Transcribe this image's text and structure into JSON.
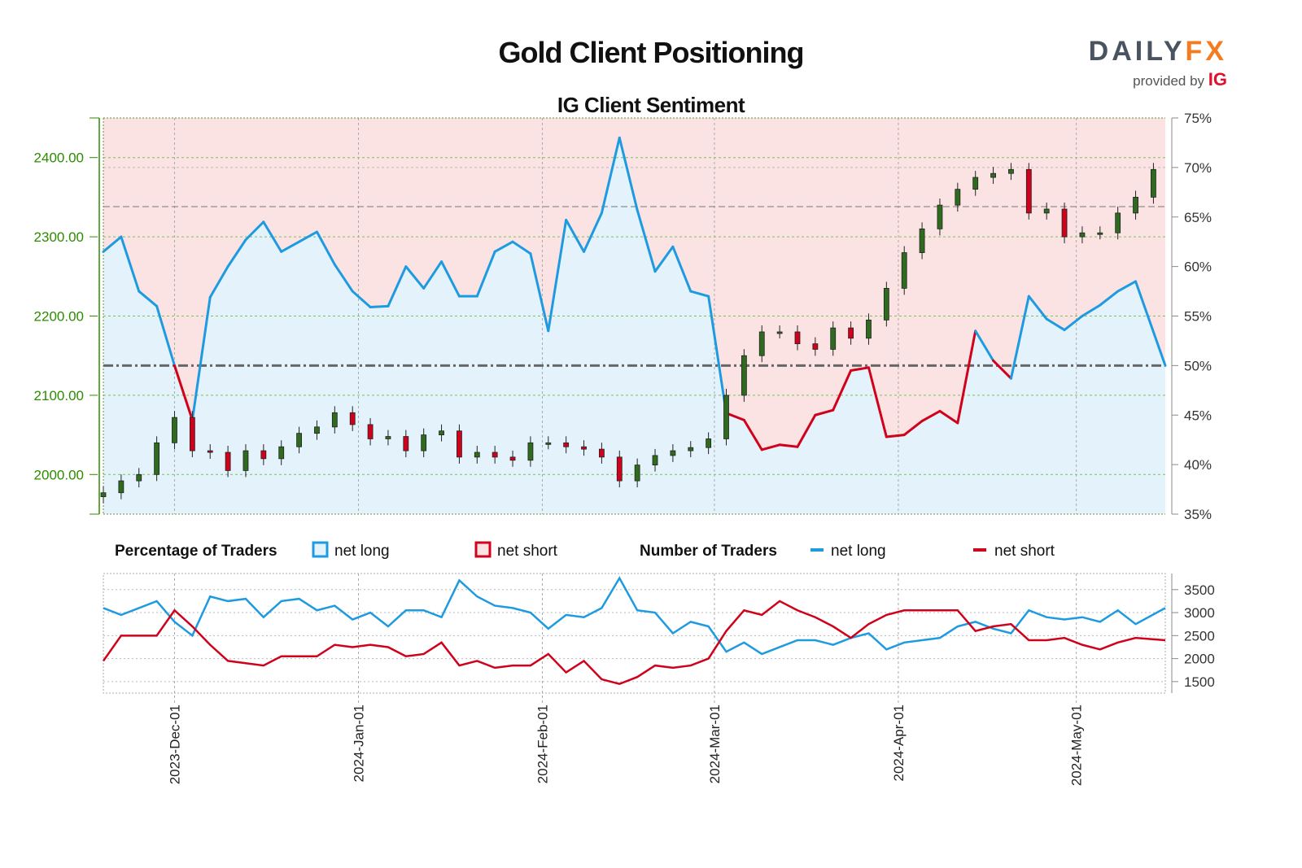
{
  "header": {
    "title": "Gold Client Positioning",
    "subtitle": "IG Client Sentiment",
    "logo_text": "DAILYFX",
    "logo_main": "DAILY",
    "logo_accent": "FX",
    "logo_tagline": "provided by",
    "logo_ig": "IG"
  },
  "legend": {
    "pct_heading": "Percentage of Traders",
    "pct_long": "net long",
    "pct_short": "net short",
    "num_heading": "Number of Traders",
    "num_long": "net long",
    "num_short": "net short"
  },
  "colors": {
    "long": "#1e9be0",
    "short": "#d0021b",
    "long_fill": "#e3f2fb",
    "short_fill": "#fbe3e4",
    "price_axis": "#2e8b00",
    "candle_up": "#2e6b1e",
    "candle_down": "#d0021b"
  },
  "chart_data": [
    {
      "type": "candlestick+line",
      "title": "IG Client Sentiment",
      "price_ticks": [
        "2000.00",
        "2100.00",
        "2200.00",
        "2300.00",
        "2400.00"
      ],
      "price_range": [
        1950,
        2450
      ],
      "pct_ticks": [
        "35%",
        "40%",
        "45%",
        "50%",
        "55%",
        "60%",
        "65%",
        "70%",
        "75%"
      ],
      "pct_range": [
        35,
        75
      ],
      "x_ticks": [
        "2023-Dec-01",
        "2024-Jan-01",
        "2024-Feb-01",
        "2024-Mar-01",
        "2024-Apr-01",
        "2024-May-01"
      ],
      "x_tick_dates": [
        "2023-12-01",
        "2024-01-01",
        "2024-02-01",
        "2024-03-01",
        "2024-04-01",
        "2024-05-01"
      ],
      "x_range": [
        "2023-11-19",
        "2024-05-16"
      ],
      "dates": [
        "2023-11-19",
        "2023-11-22",
        "2023-11-25",
        "2023-11-28",
        "2023-12-01",
        "2023-12-04",
        "2023-12-07",
        "2023-12-10",
        "2023-12-13",
        "2023-12-16",
        "2023-12-19",
        "2023-12-22",
        "2023-12-25",
        "2023-12-28",
        "2023-12-31",
        "2024-01-03",
        "2024-01-06",
        "2024-01-09",
        "2024-01-12",
        "2024-01-15",
        "2024-01-18",
        "2024-01-21",
        "2024-01-24",
        "2024-01-27",
        "2024-01-30",
        "2024-02-02",
        "2024-02-05",
        "2024-02-08",
        "2024-02-11",
        "2024-02-14",
        "2024-02-17",
        "2024-02-20",
        "2024-02-23",
        "2024-02-26",
        "2024-02-29",
        "2024-03-03",
        "2024-03-06",
        "2024-03-09",
        "2024-03-12",
        "2024-03-15",
        "2024-03-18",
        "2024-03-21",
        "2024-03-24",
        "2024-03-27",
        "2024-03-30",
        "2024-04-02",
        "2024-04-05",
        "2024-04-08",
        "2024-04-11",
        "2024-04-14",
        "2024-04-17",
        "2024-04-20",
        "2024-04-23",
        "2024-04-26",
        "2024-04-29",
        "2024-05-02",
        "2024-05-05",
        "2024-05-08",
        "2024-05-11",
        "2024-05-14"
      ],
      "price_close": [
        1977,
        1992,
        2000,
        2040,
        2072,
        2030,
        2028,
        2005,
        2030,
        2020,
        2035,
        2052,
        2060,
        2078,
        2063,
        2045,
        2048,
        2030,
        2050,
        2055,
        2022,
        2028,
        2022,
        2018,
        2040,
        2040,
        2035,
        2032,
        2022,
        1992,
        2012,
        2024,
        2030,
        2034,
        2045,
        2100,
        2150,
        2180,
        2180,
        2165,
        2158,
        2185,
        2172,
        2195,
        2235,
        2280,
        2310,
        2340,
        2360,
        2375,
        2380,
        2385,
        2330,
        2335,
        2300,
        2305,
        2305,
        2330,
        2350,
        2385
      ],
      "pct_net_long": [
        61.5,
        63,
        57.5,
        56,
        50,
        44.5,
        56.9,
        60,
        62.7,
        64.5,
        61.5,
        62.5,
        63.5,
        60.2,
        57.5,
        55.9,
        56,
        60,
        57.8,
        60.5,
        57,
        57,
        61.5,
        62.5,
        61.3,
        53.5,
        64.7,
        61.5,
        65.4,
        73,
        65.7,
        59.5,
        62,
        57.5,
        57,
        45.2,
        44.5,
        41.5,
        42,
        41.8,
        45,
        45.5,
        49.5,
        49.8,
        42.8,
        43,
        44.4,
        45.4,
        44.2,
        53.5,
        50.5,
        48.7,
        57,
        54.7,
        53.6,
        55,
        56.1,
        57.5,
        58.5,
        50
      ]
    },
    {
      "type": "line",
      "y_ticks": [
        "1500",
        "2000",
        "2500",
        "3000",
        "3500"
      ],
      "y_range": [
        1250,
        3850
      ],
      "series": [
        {
          "name": "net long",
          "values": [
            3100,
            2950,
            3100,
            3250,
            2800,
            2500,
            3350,
            3250,
            3300,
            2900,
            3250,
            3300,
            3050,
            3150,
            2850,
            3000,
            2700,
            3050,
            3050,
            2900,
            3700,
            3350,
            3150,
            3100,
            3000,
            2650,
            2950,
            2900,
            3100,
            3750,
            3050,
            3000,
            2550,
            2800,
            2700,
            2150,
            2350,
            2100,
            2250,
            2400,
            2400,
            2300,
            2450,
            2550,
            2200,
            2350,
            2400,
            2450,
            2700,
            2800,
            2650,
            2550,
            3050,
            2900,
            2850,
            2900,
            2800,
            3050,
            2750,
            3100
          ]
        },
        {
          "name": "net short",
          "values": [
            1950,
            2500,
            2500,
            2500,
            3050,
            2700,
            2300,
            1950,
            1900,
            1850,
            2050,
            2050,
            2050,
            2300,
            2250,
            2300,
            2250,
            2050,
            2100,
            2350,
            1850,
            1950,
            1800,
            1850,
            1850,
            2100,
            1700,
            1950,
            1550,
            1450,
            1600,
            1850,
            1800,
            1850,
            2000,
            2600,
            3050,
            2950,
            3250,
            3050,
            2900,
            2700,
            2450,
            2750,
            2950,
            3050,
            3050,
            3050,
            3050,
            2600,
            2700,
            2750,
            2400,
            2400,
            2450,
            2300,
            2200,
            2350,
            2450,
            2400
          ]
        }
      ]
    }
  ]
}
